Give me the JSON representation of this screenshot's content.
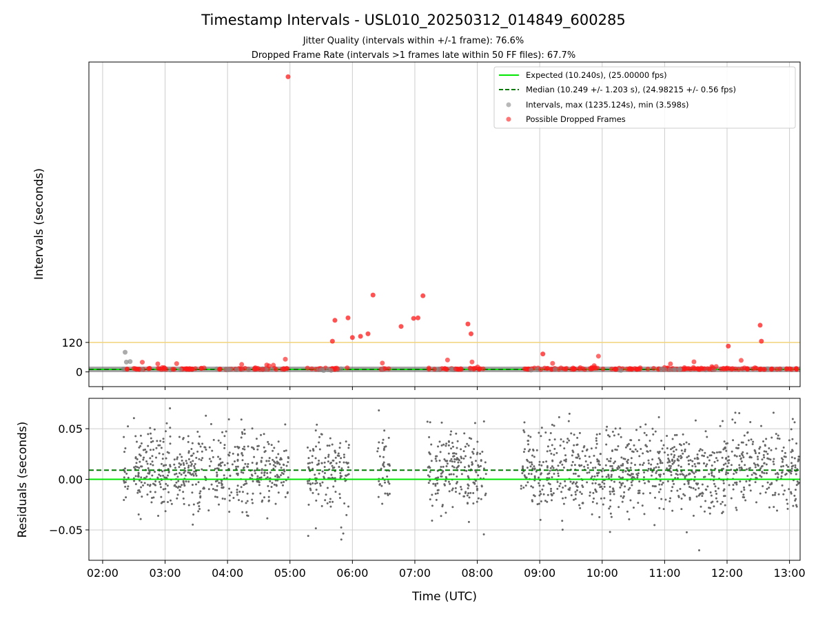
{
  "title": "Timestamp Intervals - USL010_20250312_014849_600285",
  "subtitle_1": "Jitter Quality (intervals within +/-1 frame): 76.6%",
  "subtitle_2": "Dropped Frame Rate (intervals >1 frames late within 50 FF files): 67.7%",
  "colors": {
    "expected": "#00e600",
    "median": "#007a00",
    "intervals": "#888888",
    "dropped": "#ff1a1a",
    "threshold": "#f2d27a",
    "residuals": "#666666",
    "grid": "#cccccc"
  },
  "chart_data": [
    {
      "type": "scatter",
      "panel": "top",
      "ylabel": "Intervals (seconds)",
      "xlabel": "",
      "ytick_labels": [
        "0",
        "120"
      ],
      "yticks": [
        0,
        120
      ],
      "ylim": [
        -60,
        1262
      ],
      "xlim_hours": [
        1.78,
        13.17
      ],
      "x_unit": "hours UTC",
      "grid": "vertical",
      "legend_position": "top-right",
      "legend": [
        "Expected (10.240s), (25.00000 fps)",
        "Median (10.249 +/- 1.203 s), (24.98215 +/- 0.56 fps)",
        "Intervals, max (1235.124s), min (3.598s)",
        "Possible Dropped Frames"
      ],
      "expected_interval": 10.24,
      "median_interval": 10.249,
      "threshold_line": 120,
      "max_interval": 1235.124,
      "min_interval": 3.598,
      "notable_dropped_points": [
        {
          "x": 4.97,
          "y": 1202
        },
        {
          "x": 5.68,
          "y": 125
        },
        {
          "x": 5.72,
          "y": 210
        },
        {
          "x": 5.93,
          "y": 220
        },
        {
          "x": 6.0,
          "y": 140
        },
        {
          "x": 6.13,
          "y": 145
        },
        {
          "x": 6.25,
          "y": 155
        },
        {
          "x": 6.33,
          "y": 313
        },
        {
          "x": 6.78,
          "y": 185
        },
        {
          "x": 6.98,
          "y": 218
        },
        {
          "x": 7.05,
          "y": 220
        },
        {
          "x": 7.13,
          "y": 310
        },
        {
          "x": 7.85,
          "y": 195
        },
        {
          "x": 7.9,
          "y": 155
        },
        {
          "x": 9.05,
          "y": 73
        },
        {
          "x": 12.02,
          "y": 105
        },
        {
          "x": 12.53,
          "y": 190
        },
        {
          "x": 12.55,
          "y": 125
        }
      ]
    },
    {
      "type": "scatter",
      "panel": "bottom",
      "xlabel": "Time (UTC)",
      "ylabel": "Residuals (seconds)",
      "xtick_labels": [
        "02:00",
        "03:00",
        "04:00",
        "05:00",
        "06:00",
        "07:00",
        "08:00",
        "09:00",
        "10:00",
        "11:00",
        "12:00",
        "13:00"
      ],
      "ytick_labels": [
        "0.05",
        "0.00",
        "−0.05"
      ],
      "yticks": [
        0.05,
        0.0,
        -0.05
      ],
      "ylim": [
        -0.08,
        0.08
      ],
      "xlim_hours": [
        1.78,
        13.17
      ],
      "grid": "both",
      "expected_residual": 0.0,
      "median_residual": 0.009,
      "residual_spread": [
        -0.075,
        0.078
      ],
      "observation_segments_hours": [
        [
          2.33,
          2.42
        ],
        [
          2.5,
          4.98
        ],
        [
          5.28,
          5.58
        ],
        [
          5.6,
          5.95
        ],
        [
          6.4,
          6.6
        ],
        [
          7.2,
          8.15
        ],
        [
          8.7,
          9.0
        ],
        [
          9.0,
          13.17
        ]
      ]
    }
  ]
}
